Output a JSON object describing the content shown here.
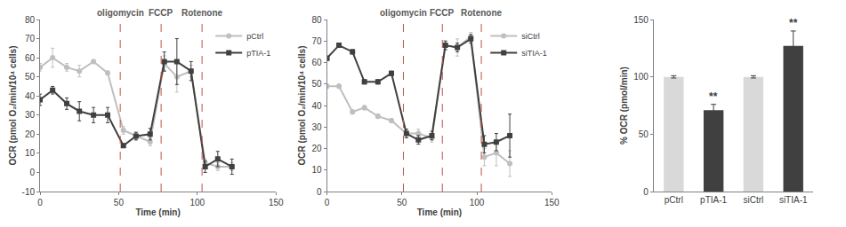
{
  "chart_data": [
    {
      "type": "line",
      "x_title": "Time (min)",
      "y_title": "OCR (pmol O₂/min/10⁴ cells)",
      "x": [
        0,
        8,
        17,
        25,
        34,
        43,
        53,
        61,
        70,
        79,
        87,
        96,
        105,
        113,
        122
      ],
      "xlim": [
        0,
        150
      ],
      "xticks": [
        0,
        50,
        100,
        150
      ],
      "ylim": [
        -10,
        80
      ],
      "yticks": [
        -10,
        0,
        10,
        20,
        30,
        40,
        50,
        60,
        70,
        80
      ],
      "grid": false,
      "legend": "top right",
      "events": [
        {
          "x": 51,
          "label": "oligomycin"
        },
        {
          "x": 77,
          "label": "FCCP"
        },
        {
          "x": 103,
          "label": "Rotenone"
        }
      ],
      "event_color": "#c0504d",
      "series": [
        {
          "name": "pCtrl",
          "color": "#bfbfbf",
          "marker": "circle",
          "values": [
            55,
            60,
            55,
            53,
            58,
            52,
            22,
            19,
            16,
            57,
            50,
            53,
            5,
            3,
            3
          ],
          "errors": [
            2,
            5,
            2,
            3,
            1,
            1,
            2,
            2,
            2,
            4,
            8,
            3,
            2,
            2,
            2
          ]
        },
        {
          "name": "pTIA-1",
          "color": "#404040",
          "marker": "square",
          "values": [
            38,
            43,
            36,
            32,
            30,
            30,
            14,
            19,
            20,
            58,
            58,
            53,
            3,
            7,
            3
          ],
          "errors": [
            3,
            2,
            3,
            5,
            4,
            4,
            1,
            2,
            3,
            5,
            12,
            5,
            3,
            4,
            4
          ]
        }
      ]
    },
    {
      "type": "line",
      "x_title": "Time (min)",
      "y_title": "OCR (pmol O₂/min/10⁴ cells)",
      "x": [
        0,
        8,
        17,
        25,
        34,
        43,
        53,
        61,
        70,
        79,
        87,
        96,
        105,
        113,
        122
      ],
      "xlim": [
        0,
        150
      ],
      "xticks": [
        0,
        50,
        100,
        150
      ],
      "ylim": [
        0,
        80
      ],
      "yticks": [
        0,
        10,
        20,
        30,
        40,
        50,
        60,
        70,
        80
      ],
      "grid": false,
      "legend": "top right",
      "events": [
        {
          "x": 51,
          "label": "oligomycin"
        },
        {
          "x": 77,
          "label": "FCCP"
        },
        {
          "x": 103,
          "label": "Rotenone"
        }
      ],
      "event_color": "#c0504d",
      "series": [
        {
          "name": "siCtrl",
          "color": "#bfbfbf",
          "marker": "circle",
          "values": [
            49,
            49,
            37,
            39,
            35,
            33,
            27,
            27,
            25,
            68,
            67,
            72,
            16,
            18,
            13
          ],
          "errors": [
            1,
            1,
            1,
            1,
            1,
            1,
            2,
            2,
            2,
            2,
            4,
            2,
            4,
            6,
            6
          ]
        },
        {
          "name": "siTIA-1",
          "color": "#404040",
          "marker": "square",
          "values": [
            62,
            68,
            65,
            51,
            51,
            55,
            27,
            24,
            26,
            68,
            67,
            71,
            22,
            23,
            26
          ],
          "errors": [
            1,
            1,
            1,
            1,
            1,
            1,
            2,
            2,
            2,
            2,
            2,
            2,
            4,
            4,
            10
          ]
        }
      ]
    },
    {
      "type": "bar",
      "y_title": "% OCR (pmol/min)",
      "categories": [
        "pCtrl",
        "pTIA-1",
        "siCtrl",
        "siTIA-1"
      ],
      "values": [
        100,
        71,
        100,
        127
      ],
      "errors": [
        1,
        5,
        1,
        13
      ],
      "colors": [
        "#d9d9d9",
        "#404040",
        "#d9d9d9",
        "#404040"
      ],
      "ylim": [
        0,
        150
      ],
      "yticks": [
        0,
        50,
        100,
        150
      ],
      "grid": false,
      "annotations": [
        {
          "category": "pTIA-1",
          "text": "**"
        },
        {
          "category": "siTIA-1",
          "text": "**"
        }
      ]
    }
  ]
}
